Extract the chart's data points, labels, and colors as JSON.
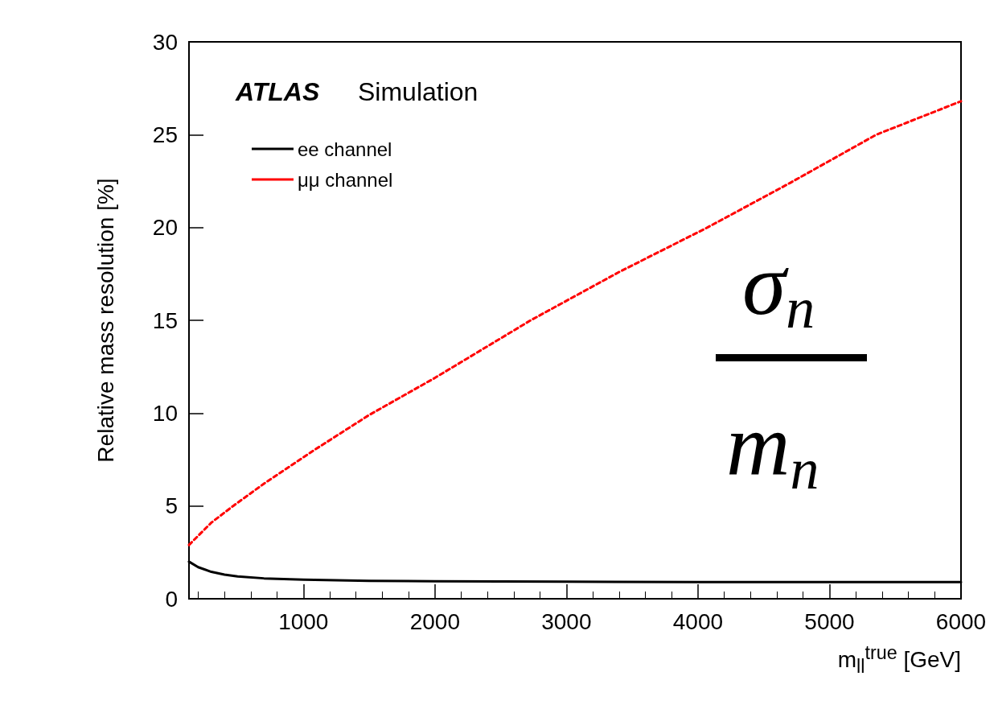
{
  "chart_data": {
    "type": "line",
    "xlabel": "m$_{ll}$$^{true}$ [GeV]",
    "ylabel": "Relative mass resolution [%]",
    "annotations": [
      "ATLAS",
      "Simulation",
      "σ$_{n}$",
      "m$_{n}$"
    ],
    "xlim": [
      130,
      6000
    ],
    "xticks": [
      1000,
      2000,
      3000,
      4000,
      5000,
      6000
    ],
    "ylim": [
      0,
      30
    ],
    "yticks": [
      0,
      5,
      10,
      15,
      20,
      25,
      30
    ],
    "grid": false,
    "legend": "top left",
    "marker": "none",
    "series": [
      {
        "name": "ee channel",
        "color": "#000000",
        "line_style": "solid",
        "x": [
          130,
          200,
          300,
          400,
          500,
          700,
          1000,
          1500,
          2000,
          3000,
          4000,
          5000,
          6000
        ],
        "values": [
          2.0,
          1.7,
          1.45,
          1.3,
          1.2,
          1.1,
          1.03,
          0.97,
          0.94,
          0.92,
          0.9,
          0.9,
          0.9
        ]
      },
      {
        "name": "μμ channel",
        "color": "#ff0000",
        "line_style": "dashed",
        "x": [
          130,
          300,
          466,
          700,
          1080,
          1500,
          2000,
          2728,
          3400,
          4072,
          4700,
          5356,
          6000
        ],
        "values": [
          2.9,
          4.1,
          5.0,
          6.2,
          8.0,
          9.9,
          11.9,
          15.0,
          17.6,
          20.0,
          22.4,
          25.0,
          26.8
        ]
      }
    ]
  }
}
